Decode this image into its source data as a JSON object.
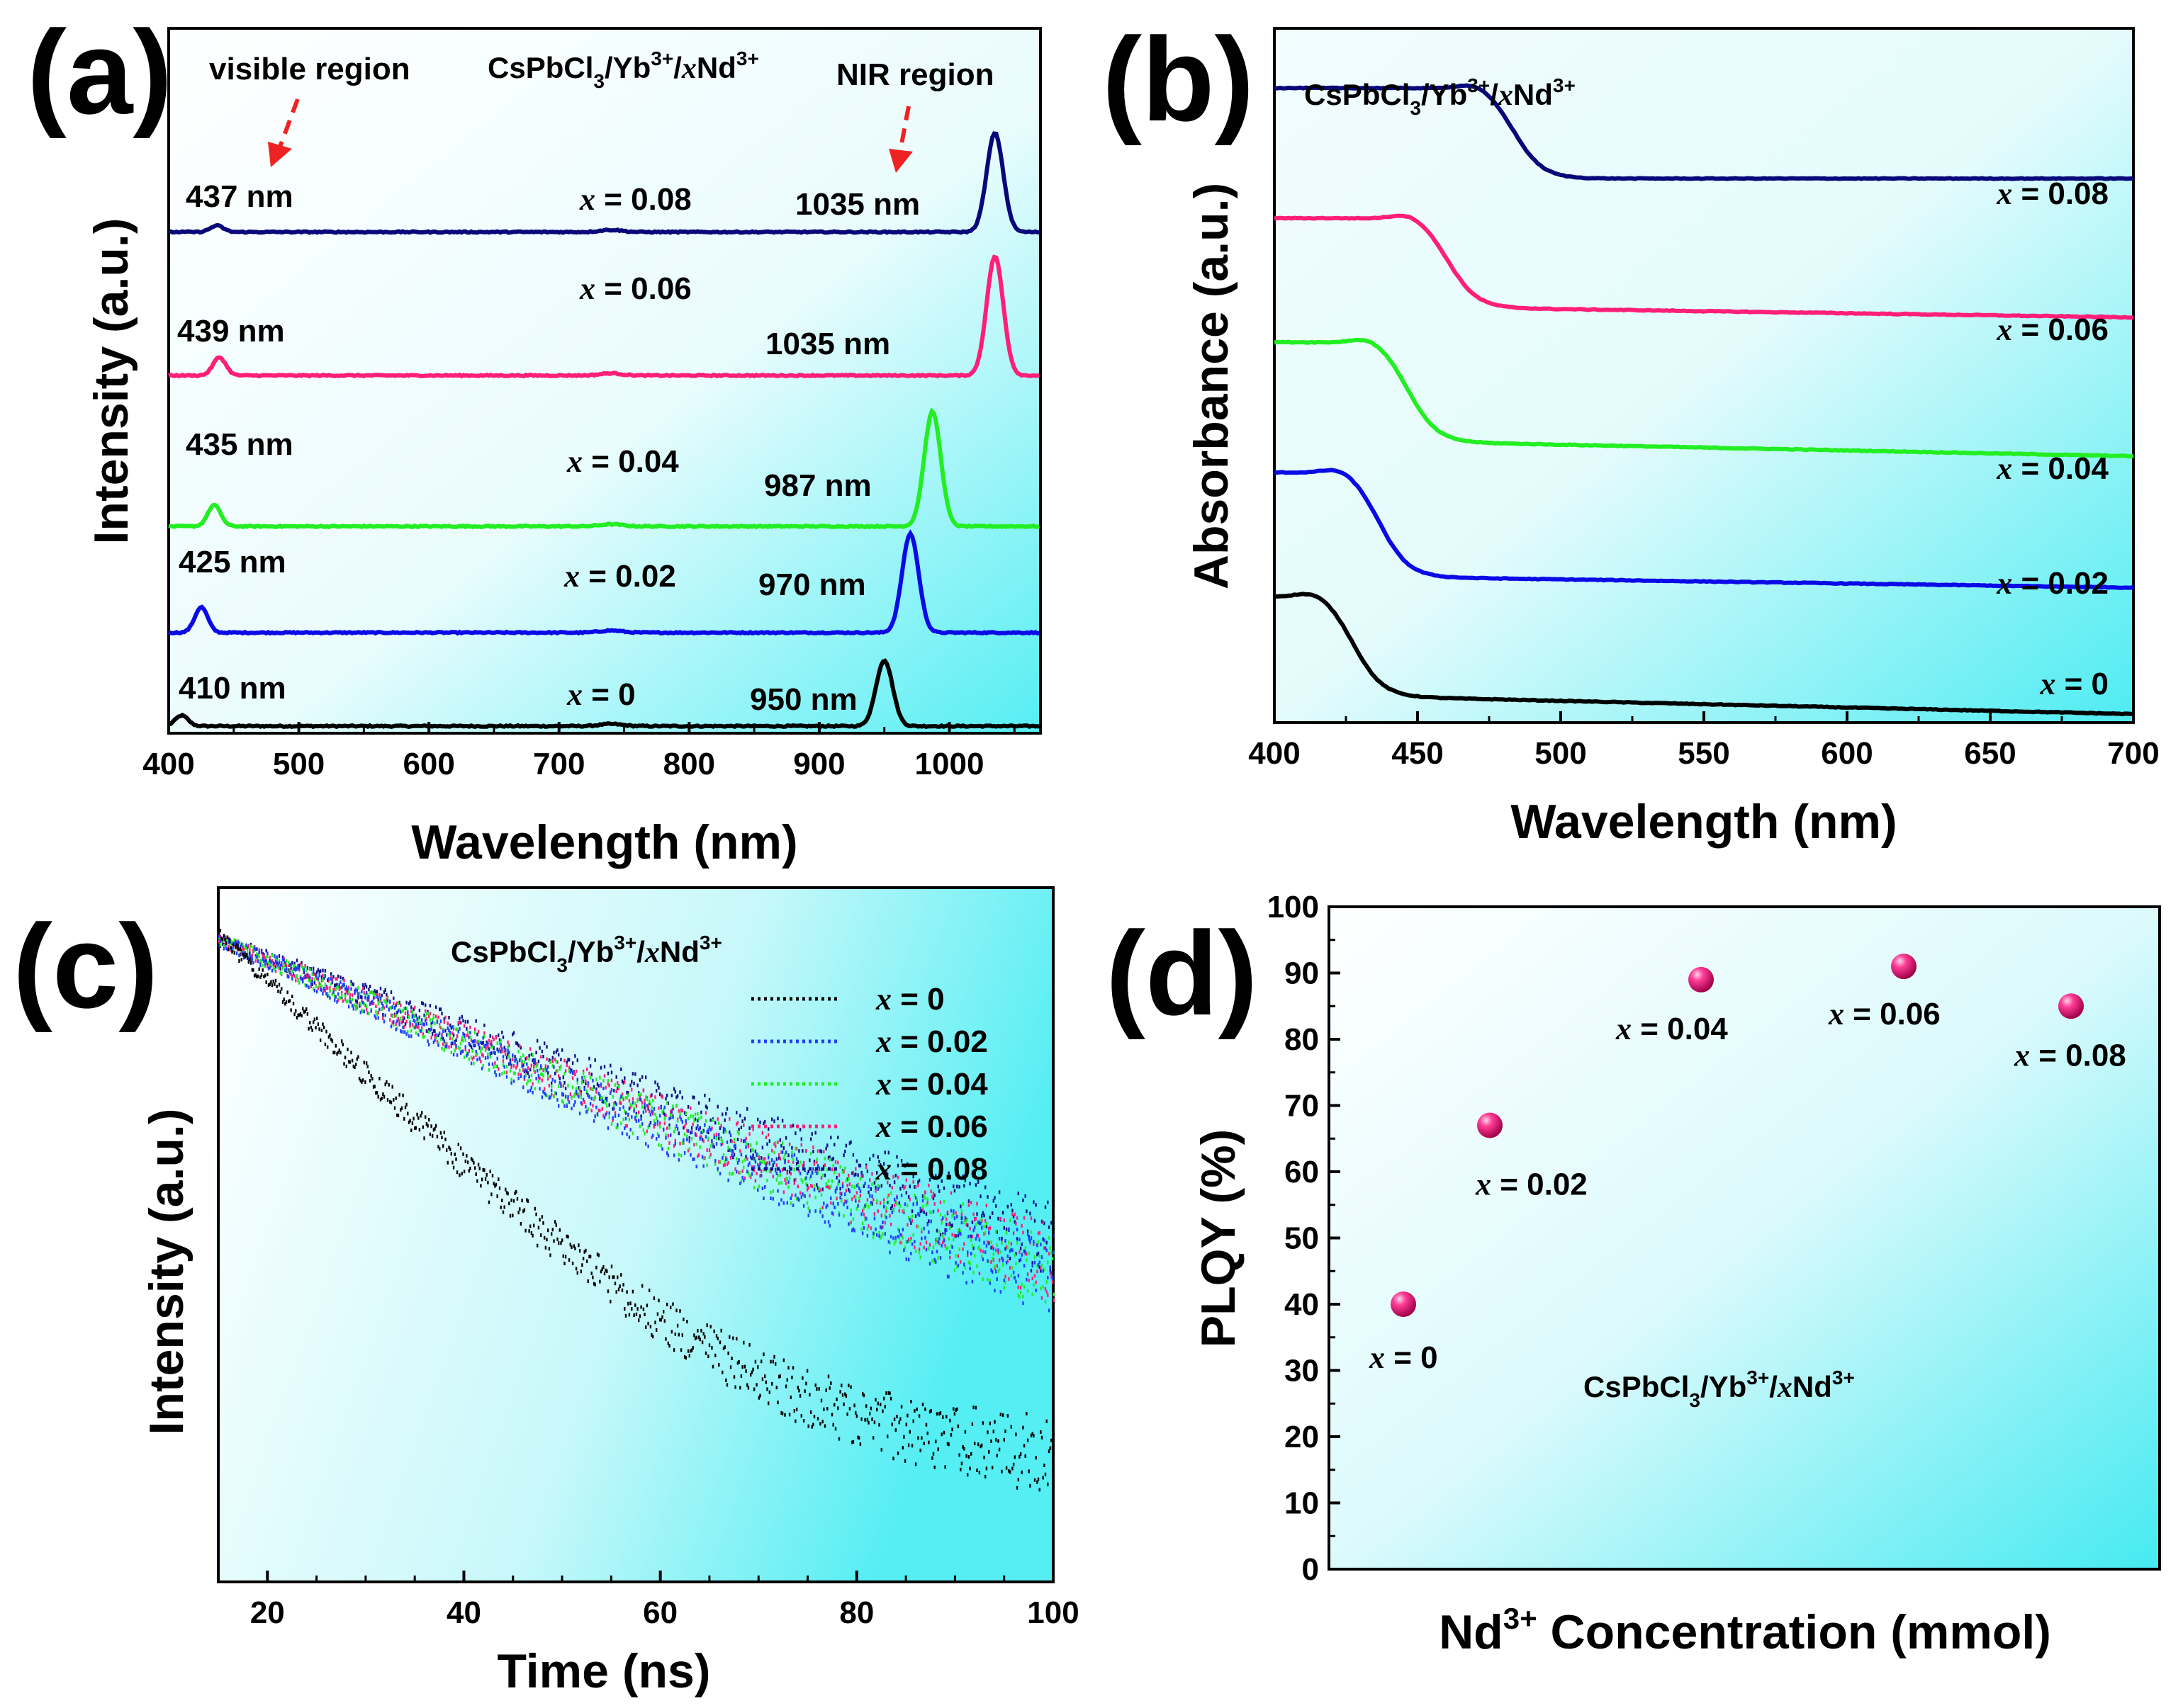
{
  "chart_data": [
    {
      "panel": "(a)",
      "type": "line",
      "title": "",
      "compound": {
        "base": "CsPbCl",
        "sub": "3",
        "mid": "/Yb",
        "sup1": "3+",
        "sep": "/",
        "x": "x",
        "el": "Nd",
        "sup2": "3+"
      },
      "xlabel": "Wavelength (nm)",
      "ylabel": "Intensity (a.u.)",
      "xlim": [
        400,
        1070
      ],
      "xticks": [
        400,
        500,
        600,
        700,
        800,
        900,
        1000
      ],
      "annotations": [
        "visible region",
        "NIR region"
      ],
      "series": [
        {
          "name": "x = 0",
          "color": "#000000",
          "offset": 0.0,
          "visible_peak": {
            "wl": 410,
            "label": "410 nm",
            "h": 0.1
          },
          "nir_peak": {
            "wl": 950,
            "label": "950 nm",
            "h": 0.62
          }
        },
        {
          "name": "x = 0.02",
          "color": "#0a0ae6",
          "offset": 0.88,
          "visible_peak": {
            "wl": 425,
            "label": "425 nm",
            "h": 0.24
          },
          "nir_peak": {
            "wl": 970,
            "label": "970 nm",
            "h": 0.93
          }
        },
        {
          "name": "x = 0.04",
          "color": "#22ee22",
          "offset": 1.88,
          "visible_peak": {
            "wl": 435,
            "label": "435 nm",
            "h": 0.2
          },
          "nir_peak": {
            "wl": 987,
            "label": "987 nm",
            "h": 1.08
          }
        },
        {
          "name": "x = 0.06",
          "color": "#ff1e78",
          "offset": 3.3,
          "visible_peak": {
            "wl": 439,
            "label": "439 nm",
            "h": 0.17
          },
          "nir_peak": {
            "wl": 1035,
            "label": "1035 nm",
            "h": 1.12
          }
        },
        {
          "name": "x = 0.08",
          "color": "#08087a",
          "offset": 4.65,
          "visible_peak": {
            "wl": 437,
            "label": "437 nm",
            "h": 0.06
          },
          "nir_peak": {
            "wl": 1035,
            "label": "1035 nm",
            "h": 0.93
          }
        }
      ]
    },
    {
      "panel": "(b)",
      "type": "line",
      "compound": {
        "base": "CsPbCl",
        "sub": "3",
        "mid": "/Yb",
        "sup1": "3+",
        "sep": "/",
        "x": "x",
        "el": "Nd",
        "sup2": "3+"
      },
      "xlabel": "Wavelength (nm)",
      "ylabel": "Absorbance (a.u.)",
      "xlim": [
        400,
        700
      ],
      "xticks": [
        400,
        450,
        500,
        550,
        600,
        650,
        700
      ],
      "series": [
        {
          "name": "x = 0",
          "color": "#000000",
          "edge_nm": 428,
          "plateau": 0.95,
          "tail_start": 0.16,
          "tail_end": 0.0
        },
        {
          "name": "x = 0.02",
          "color": "#0a0ae6",
          "edge_nm": 437,
          "plateau": 1.95,
          "tail_start": 1.12,
          "tail_end": 1.02
        },
        {
          "name": "x = 0.04",
          "color": "#22ee22",
          "edge_nm": 447,
          "plateau": 3.0,
          "tail_start": 2.22,
          "tail_end": 2.08
        },
        {
          "name": "x = 0.06",
          "color": "#ff1e78",
          "edge_nm": 461,
          "plateau": 4.0,
          "tail_start": 3.3,
          "tail_end": 3.2
        },
        {
          "name": "x = 0.08",
          "color": "#08087a",
          "edge_nm": 484,
          "plateau": 5.05,
          "tail_start": 4.32,
          "tail_end": 4.32
        }
      ]
    },
    {
      "panel": "(c)",
      "type": "scatter",
      "compound": {
        "base": "CsPbCl",
        "sub": "3",
        "mid": "/Yb",
        "sup1": "3+",
        "sep": "/",
        "x": "x",
        "el": "Nd",
        "sup2": "3+"
      },
      "xlabel": "Time (ns)",
      "ylabel": "Intensity (a.u.)",
      "xlim": [
        15,
        100
      ],
      "xticks": [
        20,
        40,
        60,
        80,
        100
      ],
      "legend": "top-right",
      "series": [
        {
          "name": "x = 0",
          "color": "#000000",
          "decay_ns": 14
        },
        {
          "name": "x = 0.02",
          "color": "#1f3fff",
          "decay_ns": 33
        },
        {
          "name": "x = 0.04",
          "color": "#22ee22",
          "decay_ns": 34
        },
        {
          "name": "x = 0.06",
          "color": "#ff1e78",
          "decay_ns": 35
        },
        {
          "name": "x = 0.08",
          "color": "#10108a",
          "decay_ns": 38
        }
      ]
    },
    {
      "panel": "(d)",
      "type": "scatter",
      "compound": {
        "base": "CsPbCl",
        "sub": "3",
        "mid": "/Yb",
        "sup1": "3+",
        "sep": "/",
        "x": "x",
        "el": "Nd",
        "sup2": "3+"
      },
      "xlabel": "Nd3+ Concentration (mmol)",
      "xlabel_parts": {
        "el": "Nd",
        "sup": "3+",
        "rest": " Concentration (mmol)"
      },
      "ylabel": "PLQY (%)",
      "ylim": [
        0,
        100
      ],
      "yticks": [
        0,
        10,
        20,
        30,
        40,
        50,
        60,
        70,
        80,
        90,
        100
      ],
      "categories": [
        "x = 0",
        "x = 0.02",
        "x = 0.04",
        "x = 0.06",
        "x = 0.08"
      ],
      "values": [
        40,
        67,
        89,
        91,
        85
      ],
      "color": "#e8106a"
    }
  ]
}
